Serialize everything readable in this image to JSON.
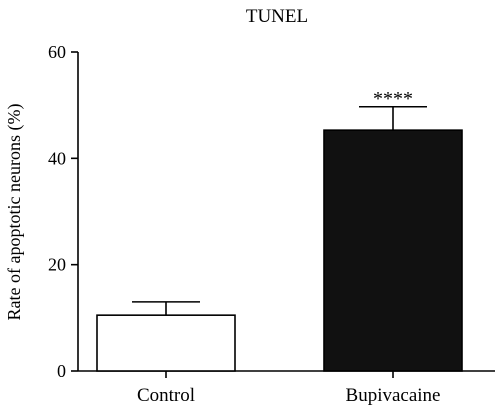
{
  "chart_data": {
    "type": "bar",
    "title": "TUNEL",
    "ylabel": "Rate of apoptotic neurons (%)",
    "xlabel": "",
    "categories": [
      "Control",
      "Bupivacaine"
    ],
    "values": [
      10.5,
      45.3
    ],
    "error_upper": [
      13.0,
      49.7
    ],
    "bar_colors": [
      "#ffffff",
      "#111111"
    ],
    "annotations": [
      "",
      "****"
    ],
    "ylim": [
      0,
      60
    ],
    "yticks": [
      0,
      20,
      40,
      60
    ],
    "grid": false,
    "legend": "none"
  }
}
